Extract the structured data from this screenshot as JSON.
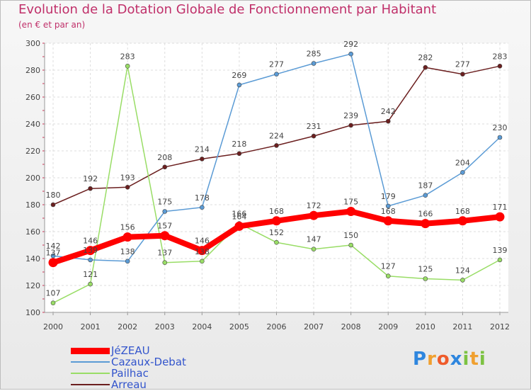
{
  "title": "Evolution de la Dotation Globale de Fonctionnement par Habitant",
  "subtitle": "(en € et par an)",
  "logo": "Proxiti",
  "chart_data": {
    "type": "line",
    "x": [
      "2000",
      "2001",
      "2002",
      "2003",
      "2004",
      "2005",
      "2006",
      "2007",
      "2008",
      "2009",
      "2010",
      "2011",
      "2012"
    ],
    "ylim": [
      100,
      300
    ],
    "yticks": [
      100,
      120,
      140,
      160,
      180,
      200,
      220,
      240,
      260,
      280,
      300
    ],
    "grid": true,
    "legend_position": "bottom-left",
    "series": [
      {
        "name": "JéZEAU",
        "color": "#ff0000",
        "values": [
          137,
          146,
          156,
          157,
          146,
          164,
          168,
          172,
          175,
          168,
          166,
          168,
          171
        ]
      },
      {
        "name": "Cazaux-Debat",
        "color": "#5b9bd5",
        "values": [
          142,
          139,
          138,
          175,
          178,
          269,
          277,
          285,
          292,
          179,
          187,
          204,
          230
        ]
      },
      {
        "name": "Pailhac",
        "color": "#99dd66",
        "values": [
          107,
          121,
          283,
          137,
          138,
          166,
          152,
          147,
          150,
          127,
          125,
          124,
          139
        ]
      },
      {
        "name": "Arreau",
        "color": "#6b1f1f",
        "values": [
          180,
          192,
          193,
          208,
          214,
          218,
          224,
          231,
          239,
          242,
          282,
          277,
          283
        ]
      }
    ]
  }
}
